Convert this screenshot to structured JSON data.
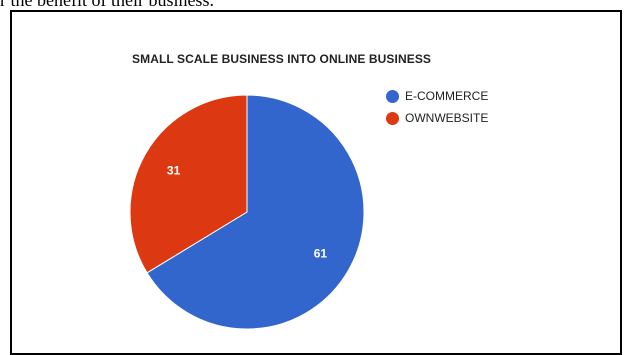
{
  "page": {
    "intro_text": "r the benefit of their business."
  },
  "chart_data": {
    "type": "pie",
    "title": "SMALL SCALE BUSINESS INTO ONLINE BUSINESS",
    "legend_position": "top-right",
    "slices": [
      {
        "label": "E-COMMERCE",
        "value": 61,
        "color": "#3366cc"
      },
      {
        "label": "OWNWEBSITE",
        "value": 31,
        "color": "#dc3912"
      }
    ]
  }
}
